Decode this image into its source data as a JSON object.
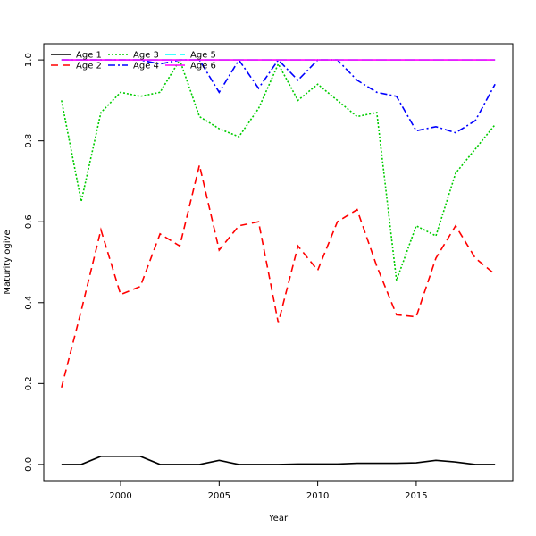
{
  "chart_data": {
    "type": "line",
    "xlabel": "Year",
    "ylabel": "Maturity ogive",
    "xlim": [
      1996.1,
      2019.9
    ],
    "ylim": [
      -0.04,
      1.04
    ],
    "x_ticks": [
      2000,
      2005,
      2010,
      2015
    ],
    "y_ticks": [
      0.0,
      0.2,
      0.4,
      0.6,
      0.8,
      1.0
    ],
    "x_tick_labels": [
      "2000",
      "2005",
      "2010",
      "2015"
    ],
    "y_tick_labels": [
      "0.0",
      "0.2",
      "0.4",
      "0.6",
      "0.8",
      "1.0"
    ],
    "legend_position": "top-left",
    "x": [
      1997,
      1998,
      1999,
      2000,
      2001,
      2002,
      2003,
      2004,
      2005,
      2006,
      2007,
      2008,
      2009,
      2010,
      2011,
      2012,
      2013,
      2014,
      2015,
      2016,
      2017,
      2018,
      2019
    ],
    "series": [
      {
        "name": "Age 1",
        "color": "#000000",
        "dash": "solid",
        "values": [
          0.0,
          0.0,
          0.02,
          0.02,
          0.02,
          0.0,
          0.0,
          0.0,
          0.01,
          0.0,
          0.0,
          0.0,
          0.001,
          0.001,
          0.001,
          0.003,
          0.003,
          0.003,
          0.004,
          0.01,
          0.006,
          0.0,
          0.0
        ]
      },
      {
        "name": "Age 2",
        "color": "#ff0000",
        "dash": "8,5",
        "values": [
          0.19,
          0.38,
          0.58,
          0.42,
          0.44,
          0.57,
          0.54,
          0.74,
          0.53,
          0.59,
          0.6,
          0.35,
          0.54,
          0.48,
          0.6,
          0.63,
          0.49,
          0.37,
          0.365,
          0.51,
          0.59,
          0.51,
          0.47
        ]
      },
      {
        "name": "Age 3",
        "color": "#00cc00",
        "dash": "2,2",
        "values": [
          0.9,
          0.65,
          0.87,
          0.92,
          0.91,
          0.92,
          1.0,
          0.86,
          0.83,
          0.81,
          0.88,
          0.99,
          0.9,
          0.94,
          0.9,
          0.86,
          0.87,
          0.455,
          0.59,
          0.565,
          0.72,
          0.78,
          0.84
        ]
      },
      {
        "name": "Age 4",
        "color": "#0000ff",
        "dash": "8,3,2,3",
        "values": [
          1.0,
          1.0,
          1.0,
          1.0,
          1.0,
          0.99,
          1.0,
          1.0,
          0.92,
          1.0,
          0.93,
          1.0,
          0.95,
          1.0,
          1.0,
          0.95,
          0.92,
          0.91,
          0.825,
          0.835,
          0.82,
          0.85,
          0.94
        ]
      },
      {
        "name": "Age 5",
        "color": "#00ffff",
        "dash": "12,4",
        "values": [
          1.0,
          1.0,
          1.0,
          1.0,
          1.0,
          1.0,
          1.0,
          1.0,
          1.0,
          1.0,
          1.0,
          1.0,
          1.0,
          1.0,
          1.0,
          1.0,
          1.0,
          1.0,
          1.0,
          1.0,
          1.0,
          1.0,
          1.0
        ]
      },
      {
        "name": "Age 6",
        "color": "#ff00ff",
        "dash": "solid",
        "values": [
          1.0,
          1.0,
          1.0,
          1.0,
          1.0,
          1.0,
          1.0,
          1.0,
          1.0,
          1.0,
          1.0,
          1.0,
          1.0,
          1.0,
          1.0,
          1.0,
          1.0,
          1.0,
          1.0,
          1.0,
          1.0,
          1.0,
          1.0
        ]
      }
    ]
  }
}
